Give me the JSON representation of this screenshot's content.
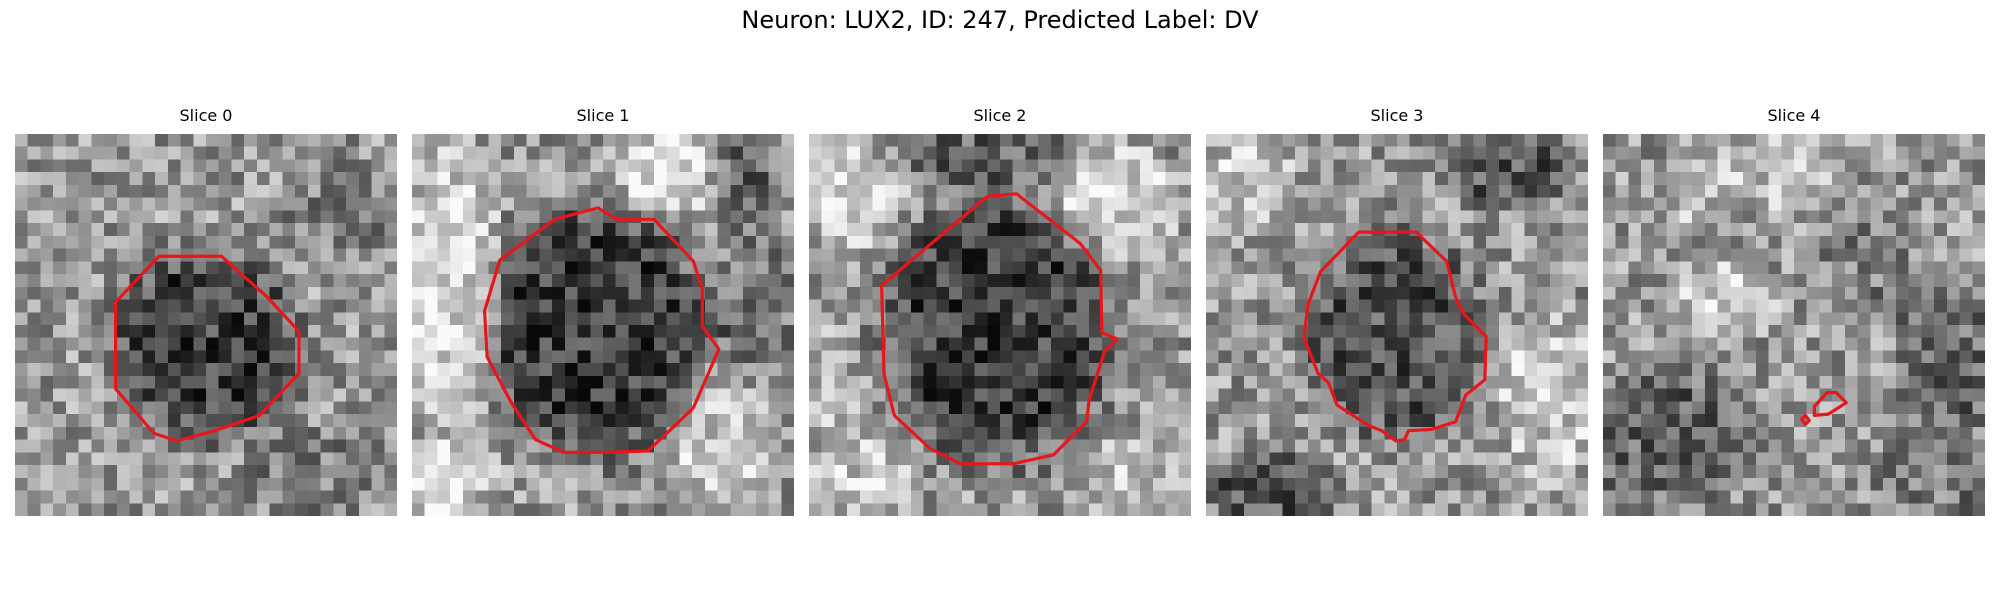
{
  "figure": {
    "title": "Neuron: LUX2, ID: 247, Predicted Label: DV"
  },
  "colors": {
    "background": "#ffffff",
    "contour": "#e8161b",
    "colormap": "gray"
  },
  "panels": [
    {
      "title": "Slice 0",
      "image": "noisy grayscale microscopy slice with dark cell body",
      "overlay": "red cell contour"
    },
    {
      "title": "Slice 1",
      "image": "noisy grayscale microscopy slice with dark cell body",
      "overlay": "red cell contour"
    },
    {
      "title": "Slice 2",
      "image": "noisy grayscale microscopy slice with dark cell body",
      "overlay": "red cell contour"
    },
    {
      "title": "Slice 3",
      "image": "noisy grayscale microscopy slice with dark cell body",
      "overlay": "red cell contour"
    },
    {
      "title": "Slice 4",
      "image": "noisy grayscale microscopy slice",
      "overlay": "two small red contours"
    }
  ]
}
